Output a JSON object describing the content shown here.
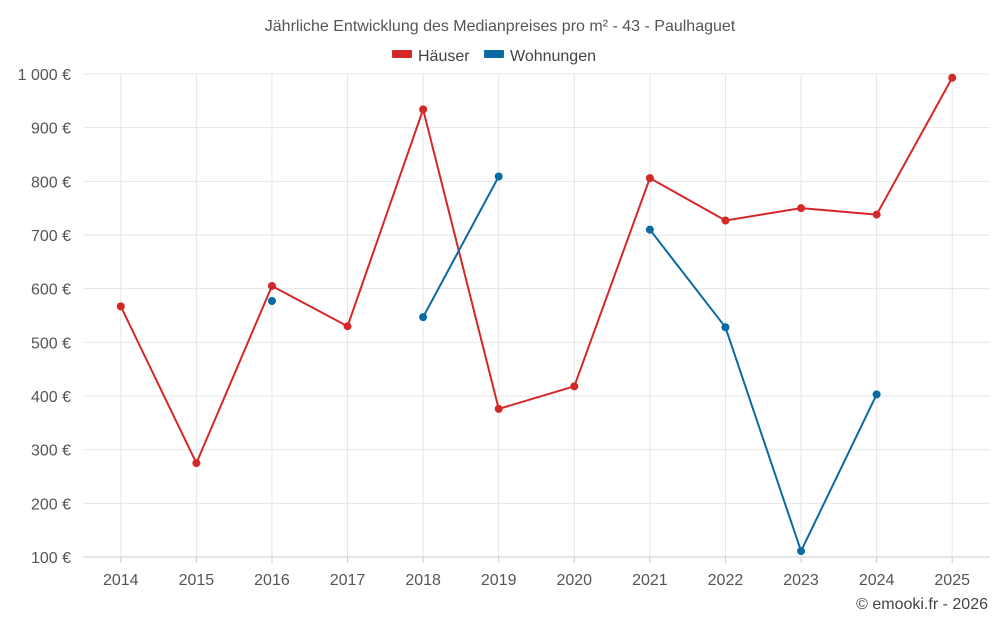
{
  "chart_data": {
    "type": "line",
    "title": "Jährliche Entwicklung des Medianpreises pro m² - 43 - Paulhaguet",
    "xlabel": "",
    "ylabel": "",
    "categories": [
      "2014",
      "2015",
      "2016",
      "2017",
      "2018",
      "2019",
      "2020",
      "2021",
      "2022",
      "2023",
      "2024",
      "2025"
    ],
    "ylim": [
      100,
      1000
    ],
    "yticks": [
      100,
      200,
      300,
      400,
      500,
      600,
      700,
      800,
      900,
      1000
    ],
    "ytick_labels": [
      "100 €",
      "200 €",
      "300 €",
      "400 €",
      "500 €",
      "600 €",
      "700 €",
      "800 €",
      "900 €",
      "1 000 €"
    ],
    "grid": true,
    "legend_position": "top-center",
    "series": [
      {
        "name": "Häuser",
        "color": "#d62728",
        "values": [
          567,
          275,
          605,
          530,
          934,
          376,
          418,
          806,
          727,
          750,
          738,
          993
        ]
      },
      {
        "name": "Wohnungen",
        "color": "#0a6aa1",
        "values": [
          null,
          null,
          577,
          null,
          547,
          809,
          null,
          710,
          528,
          111,
          403,
          null
        ]
      }
    ]
  },
  "credit": "© emooki.fr - 2026"
}
